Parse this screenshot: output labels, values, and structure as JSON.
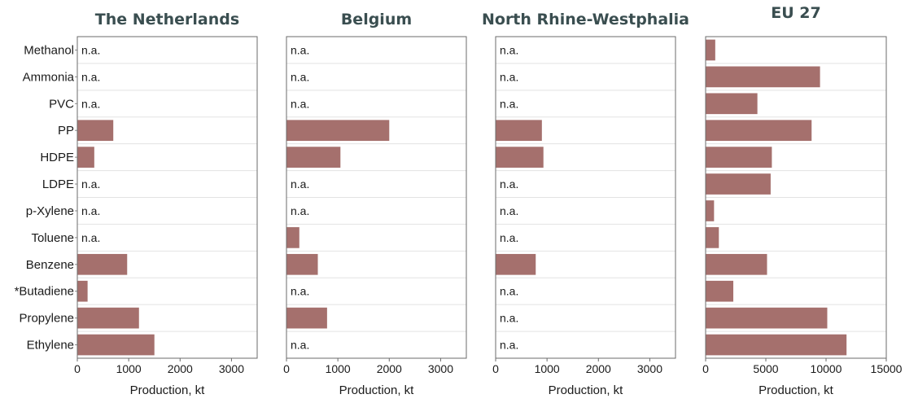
{
  "chart_data": {
    "type": "bar",
    "orientation": "horizontal",
    "categories": [
      "Methanol",
      "Ammonia",
      "PVC",
      "PP",
      "HDPE",
      "LDPE",
      "p-Xylene",
      "Toluene",
      "Benzene",
      "*Butadiene",
      "Propylene",
      "Ethylene"
    ],
    "bar_color": "#a5706d",
    "na_text": "n.a.",
    "panels": [
      {
        "title": "The Netherlands",
        "xlabel": "Production, kt",
        "xlim": [
          0,
          3500
        ],
        "xticks": [
          "0",
          "1000",
          "2000",
          "3000"
        ],
        "xtick_values": [
          0,
          1000,
          2000,
          3000
        ],
        "values": [
          null,
          null,
          null,
          700,
          330,
          null,
          null,
          null,
          970,
          200,
          1200,
          1500
        ]
      },
      {
        "title": "Belgium",
        "xlabel": "Production, kt",
        "xlim": [
          0,
          3500
        ],
        "xticks": [
          "0",
          "1000",
          "2000",
          "3000"
        ],
        "xtick_values": [
          0,
          1000,
          2000,
          3000
        ],
        "values": [
          null,
          null,
          null,
          2000,
          1050,
          null,
          null,
          250,
          610,
          null,
          790,
          null
        ]
      },
      {
        "title": "North Rhine-Westphalia",
        "xlabel": "Production, kt",
        "xlim": [
          0,
          3500
        ],
        "xticks": [
          "0",
          "1000",
          "2000",
          "3000"
        ],
        "xtick_values": [
          0,
          1000,
          2000,
          3000
        ],
        "values": [
          null,
          null,
          null,
          900,
          930,
          null,
          null,
          null,
          780,
          null,
          null,
          null
        ]
      },
      {
        "title": "EU 27",
        "xlabel": "Production, kt",
        "xlim": [
          0,
          15000
        ],
        "xticks": [
          "0",
          "5000",
          "10000",
          "15000"
        ],
        "xtick_values": [
          0,
          5000,
          10000,
          15000
        ],
        "values": [
          800,
          9500,
          4300,
          8800,
          5500,
          5400,
          700,
          1100,
          5100,
          2300,
          10100,
          11700
        ]
      }
    ]
  }
}
